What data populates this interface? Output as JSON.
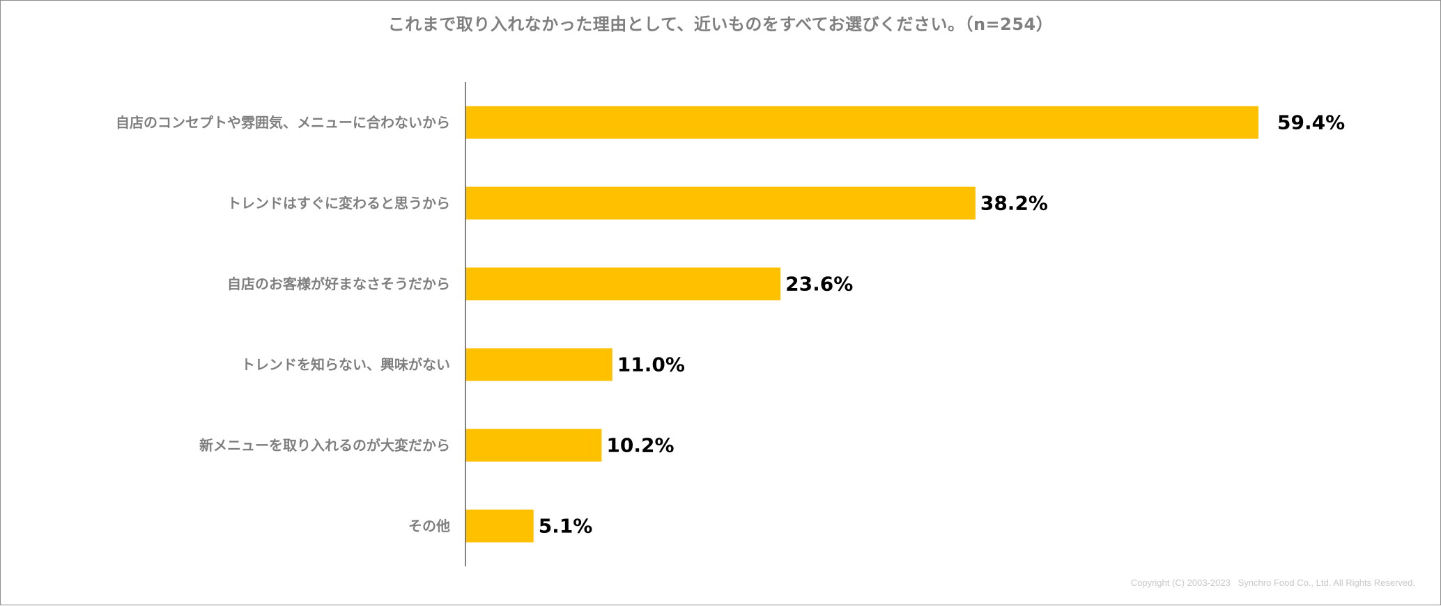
{
  "colors": {
    "bar": "#ffc000",
    "axis": "#595959",
    "title": "#7f7f7f",
    "category_label": "#7f7f7f",
    "value_label": "#000000",
    "copyright": "#c8c8c8",
    "border": "#8c8c8c"
  },
  "chart_data": {
    "type": "bar",
    "orientation": "horizontal",
    "title": "これまで取り入れなかった理由として、近いものをすべてお選びください。（n=254）",
    "categories": [
      "自店のコンセプトや雰囲気、メニューに合わないから",
      "トレンドはすぐに変わると思うから",
      "自店のお客様が好まなさそうだから",
      "トレンドを知らない、興味がない",
      "新メニューを取り入れるのが大変だから",
      "その他"
    ],
    "values": [
      59.4,
      38.2,
      23.6,
      11.0,
      10.2,
      5.1
    ],
    "value_labels": [
      "59.4%",
      "38.2%",
      "23.6%",
      "11.0%",
      "10.2%",
      "5.1%"
    ],
    "unit": "%",
    "xlim": [
      0,
      70
    ],
    "grid": false,
    "legend": "none"
  },
  "footer": {
    "copyright": "Copyright (C) 2003-2023   Synchro Food Co., Ltd. All Rights Reserved."
  }
}
